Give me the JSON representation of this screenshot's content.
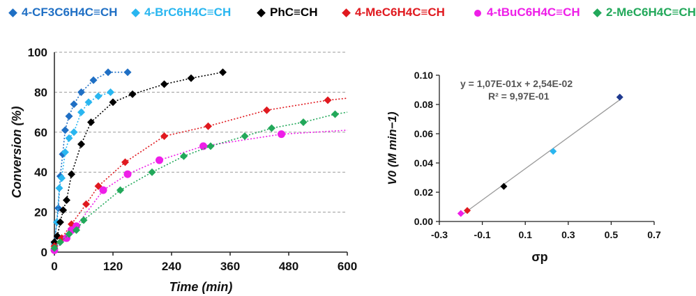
{
  "legend": [
    {
      "label": "4-CF3C6H4C≡CH",
      "color": "#1f6fc4",
      "marker": "diamond"
    },
    {
      "label": "4-BrC6H4C≡CH",
      "color": "#29b6f0",
      "marker": "diamond"
    },
    {
      "label": "PhC≡CH",
      "color": "#000000",
      "marker": "diamond"
    },
    {
      "label": "4-MeC6H4C≡CH",
      "color": "#e0191f",
      "marker": "diamond"
    },
    {
      "label": "4-tBuC6H4C≡CH",
      "color": "#ee1ee8",
      "marker": "circle"
    },
    {
      "label": "2-MeC6H4C≡CH",
      "color": "#22a85a",
      "marker": "diamond"
    }
  ],
  "chart_data": [
    {
      "type": "scatter",
      "xlabel": "Time (min)",
      "ylabel": "Conversion (%)",
      "xlim": [
        0,
        600
      ],
      "ylim": [
        0,
        100
      ],
      "xticks": [
        0,
        120,
        240,
        360,
        480,
        600
      ],
      "yticks": [
        0,
        20,
        40,
        60,
        80,
        100
      ],
      "grid": "horizontal dashed",
      "series": [
        {
          "name": "4-CF3C6H4C≡CH",
          "color": "#1f6fc4",
          "marker": "diamond",
          "points": [
            [
              0,
              5
            ],
            [
              5,
              15
            ],
            [
              8,
              22
            ],
            [
              12,
              38
            ],
            [
              17,
              49
            ],
            [
              22,
              61
            ],
            [
              30,
              68
            ],
            [
              40,
              74
            ],
            [
              55,
              80
            ],
            [
              80,
              86
            ],
            [
              110,
              90
            ],
            [
              150,
              90
            ]
          ]
        },
        {
          "name": "4-BrC6H4C≡CH",
          "color": "#29b6f0",
          "marker": "diamond",
          "points": [
            [
              0,
              4
            ],
            [
              5,
              15
            ],
            [
              10,
              32
            ],
            [
              15,
              37
            ],
            [
              22,
              50
            ],
            [
              30,
              57
            ],
            [
              40,
              60
            ],
            [
              55,
              70
            ],
            [
              70,
              75
            ],
            [
              90,
              78
            ],
            [
              115,
              80
            ]
          ]
        },
        {
          "name": "PhC≡CH",
          "color": "#000000",
          "marker": "diamond",
          "points": [
            [
              0,
              5
            ],
            [
              6,
              8
            ],
            [
              12,
              15
            ],
            [
              18,
              21
            ],
            [
              25,
              26
            ],
            [
              35,
              39
            ],
            [
              55,
              54
            ],
            [
              75,
              65
            ],
            [
              120,
              75
            ],
            [
              160,
              79
            ],
            [
              225,
              84
            ],
            [
              280,
              87
            ],
            [
              345,
              90
            ]
          ]
        },
        {
          "name": "4-MeC6H4C≡CH",
          "color": "#e0191f",
          "marker": "diamond",
          "points": [
            [
              0,
              3
            ],
            [
              15,
              7
            ],
            [
              35,
              14
            ],
            [
              65,
              24
            ],
            [
              90,
              33
            ],
            [
              145,
              45
            ],
            [
              225,
              58
            ],
            [
              315,
              63
            ],
            [
              435,
              71
            ],
            [
              560,
              76
            ]
          ],
          "curve_extend": [
            600,
            77
          ]
        },
        {
          "name": "4-tBuC6H4C≡CH",
          "color": "#ee1ee8",
          "marker": "circle",
          "points": [
            [
              0,
              1
            ],
            [
              25,
              7
            ],
            [
              35,
              11
            ],
            [
              45,
              13
            ],
            [
              100,
              31
            ],
            [
              150,
              39
            ],
            [
              215,
              46
            ],
            [
              305,
              53
            ],
            [
              465,
              59
            ]
          ],
          "curve_extend": [
            600,
            61
          ]
        },
        {
          "name": "2-MeC6H4C≡CH",
          "color": "#22a85a",
          "marker": "diamond",
          "points": [
            [
              0,
              2
            ],
            [
              12,
              5
            ],
            [
              30,
              9
            ],
            [
              45,
              11
            ],
            [
              60,
              16
            ],
            [
              135,
              31
            ],
            [
              200,
              40
            ],
            [
              265,
              48
            ],
            [
              320,
              53
            ],
            [
              390,
              58
            ],
            [
              445,
              62
            ],
            [
              510,
              65
            ],
            [
              575,
              69
            ]
          ],
          "curve_extend": [
            600,
            70
          ]
        }
      ]
    },
    {
      "type": "scatter",
      "xlabel": "σp",
      "ylabel": "V0 (M min−1)",
      "xlim": [
        -0.3,
        0.7
      ],
      "ylim": [
        0,
        0.1
      ],
      "xticks": [
        "-0.3",
        "-0.1",
        "0.1",
        "0.3",
        "0.5",
        "0.7"
      ],
      "yticks": [
        "0.00",
        "0.02",
        "0.04",
        "0.06",
        "0.08",
        "0.10"
      ],
      "equation": "y = 1,07E-01x + 2,54E-02",
      "r2": "R² = 9,97E-01",
      "fit": {
        "slope": 0.107,
        "intercept": 0.0254,
        "x_from": -0.2,
        "x_to": 0.54
      },
      "points": [
        {
          "x": 0.54,
          "y": 0.085,
          "color": "#1f3a8f"
        },
        {
          "x": 0.23,
          "y": 0.048,
          "color": "#29b6f0"
        },
        {
          "x": 0.0,
          "y": 0.024,
          "color": "#000000"
        },
        {
          "x": -0.17,
          "y": 0.0075,
          "color": "#e0191f"
        },
        {
          "x": -0.2,
          "y": 0.0055,
          "color": "#ee1ee8"
        }
      ]
    }
  ]
}
